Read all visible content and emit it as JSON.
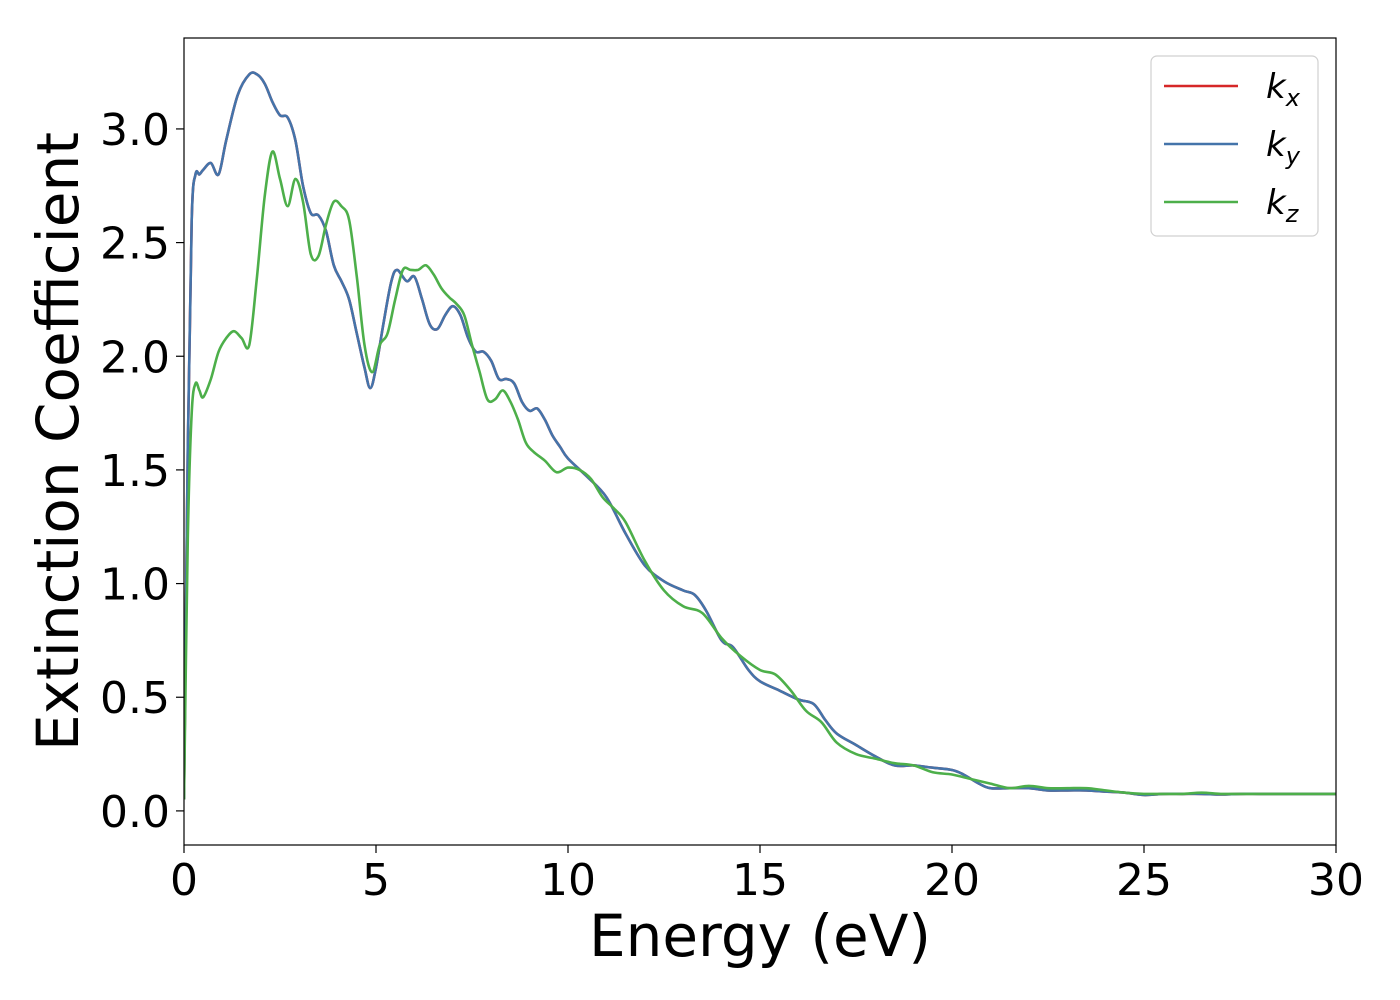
{
  "chart_data": {
    "type": "line",
    "xlabel": "Energy (eV)",
    "ylabel": "Extinction Coefficient",
    "xlim": [
      0,
      30
    ],
    "ylim": [
      -0.15,
      3.4
    ],
    "xticks": [
      "0",
      "5",
      "10",
      "15",
      "20",
      "25",
      "30"
    ],
    "xtick_values": [
      0,
      5,
      10,
      15,
      20,
      25,
      30
    ],
    "yticks": [
      "0.0",
      "0.5",
      "1.0",
      "1.5",
      "2.0",
      "2.5",
      "3.0"
    ],
    "ytick_values": [
      0.0,
      0.5,
      1.0,
      1.5,
      2.0,
      2.5,
      3.0
    ],
    "grid": false,
    "legend_position": "top-right",
    "series": [
      {
        "name": "k_x",
        "legend_base": "k",
        "legend_sub": "x",
        "color": "#d62728",
        "x": [
          0,
          0.1,
          0.2,
          0.3,
          0.4,
          0.5,
          0.7,
          0.9,
          1.1,
          1.4,
          1.7,
          1.9,
          2.1,
          2.3,
          2.5,
          2.7,
          2.9,
          3.1,
          3.3,
          3.5,
          3.7,
          3.9,
          4.1,
          4.3,
          4.5,
          4.7,
          4.85,
          5.0,
          5.2,
          5.4,
          5.55,
          5.8,
          6.0,
          6.2,
          6.4,
          6.6,
          6.8,
          7.0,
          7.2,
          7.4,
          7.6,
          7.8,
          8.0,
          8.2,
          8.4,
          8.6,
          8.8,
          9.0,
          9.2,
          9.4,
          9.6,
          9.8,
          10.0,
          10.5,
          11.0,
          11.5,
          12.0,
          12.5,
          13.0,
          13.3,
          13.6,
          14.0,
          14.3,
          14.7,
          15.0,
          15.5,
          16.0,
          16.4,
          16.7,
          17.0,
          17.5,
          18.0,
          18.5,
          19.0,
          19.5,
          20.0,
          20.3,
          20.7,
          21.0,
          21.5,
          22.0,
          22.5,
          23.0,
          23.5,
          24.0,
          24.5,
          25.0,
          25.5,
          26.0,
          26.5,
          27.0,
          27.5,
          28.0,
          28.5,
          29.0,
          29.5,
          30.0
        ],
        "values": [
          0.05,
          1.6,
          2.6,
          2.8,
          2.8,
          2.82,
          2.85,
          2.8,
          2.95,
          3.15,
          3.24,
          3.24,
          3.2,
          3.12,
          3.06,
          3.05,
          2.95,
          2.75,
          2.63,
          2.62,
          2.55,
          2.4,
          2.33,
          2.25,
          2.1,
          1.95,
          1.86,
          1.95,
          2.15,
          2.33,
          2.38,
          2.33,
          2.35,
          2.25,
          2.14,
          2.12,
          2.18,
          2.22,
          2.18,
          2.08,
          2.02,
          2.02,
          1.98,
          1.9,
          1.9,
          1.88,
          1.8,
          1.76,
          1.77,
          1.72,
          1.65,
          1.6,
          1.55,
          1.47,
          1.38,
          1.22,
          1.08,
          1.01,
          0.97,
          0.95,
          0.88,
          0.75,
          0.72,
          0.62,
          0.57,
          0.53,
          0.49,
          0.47,
          0.4,
          0.34,
          0.29,
          0.24,
          0.2,
          0.2,
          0.19,
          0.18,
          0.16,
          0.12,
          0.1,
          0.1,
          0.1,
          0.09,
          0.09,
          0.09,
          0.085,
          0.08,
          0.07,
          0.075,
          0.075,
          0.075,
          0.072,
          0.075,
          0.075,
          0.075,
          0.075,
          0.075,
          0.075
        ]
      },
      {
        "name": "k_y",
        "legend_base": "k",
        "legend_sub": "y",
        "color": "#4474aa",
        "x": [
          0,
          0.1,
          0.2,
          0.3,
          0.4,
          0.5,
          0.7,
          0.9,
          1.1,
          1.4,
          1.7,
          1.9,
          2.1,
          2.3,
          2.5,
          2.7,
          2.9,
          3.1,
          3.3,
          3.5,
          3.7,
          3.9,
          4.1,
          4.3,
          4.5,
          4.7,
          4.85,
          5.0,
          5.2,
          5.4,
          5.55,
          5.8,
          6.0,
          6.2,
          6.4,
          6.6,
          6.8,
          7.0,
          7.2,
          7.4,
          7.6,
          7.8,
          8.0,
          8.2,
          8.4,
          8.6,
          8.8,
          9.0,
          9.2,
          9.4,
          9.6,
          9.8,
          10.0,
          10.5,
          11.0,
          11.5,
          12.0,
          12.5,
          13.0,
          13.3,
          13.6,
          14.0,
          14.3,
          14.7,
          15.0,
          15.5,
          16.0,
          16.4,
          16.7,
          17.0,
          17.5,
          18.0,
          18.5,
          19.0,
          19.5,
          20.0,
          20.3,
          20.7,
          21.0,
          21.5,
          22.0,
          22.5,
          23.0,
          23.5,
          24.0,
          24.5,
          25.0,
          25.5,
          26.0,
          26.5,
          27.0,
          27.5,
          28.0,
          28.5,
          29.0,
          29.5,
          30.0
        ],
        "values": [
          0.05,
          1.6,
          2.6,
          2.8,
          2.8,
          2.82,
          2.85,
          2.8,
          2.95,
          3.15,
          3.24,
          3.24,
          3.2,
          3.12,
          3.06,
          3.05,
          2.95,
          2.75,
          2.63,
          2.62,
          2.55,
          2.4,
          2.33,
          2.25,
          2.1,
          1.95,
          1.86,
          1.95,
          2.15,
          2.33,
          2.38,
          2.33,
          2.35,
          2.25,
          2.14,
          2.12,
          2.18,
          2.22,
          2.18,
          2.08,
          2.02,
          2.02,
          1.98,
          1.9,
          1.9,
          1.88,
          1.8,
          1.76,
          1.77,
          1.72,
          1.65,
          1.6,
          1.55,
          1.47,
          1.38,
          1.22,
          1.08,
          1.01,
          0.97,
          0.95,
          0.88,
          0.75,
          0.72,
          0.62,
          0.57,
          0.53,
          0.49,
          0.47,
          0.4,
          0.34,
          0.29,
          0.24,
          0.2,
          0.2,
          0.19,
          0.18,
          0.16,
          0.12,
          0.1,
          0.1,
          0.1,
          0.09,
          0.09,
          0.09,
          0.085,
          0.08,
          0.07,
          0.075,
          0.075,
          0.075,
          0.072,
          0.075,
          0.075,
          0.075,
          0.075,
          0.075,
          0.075
        ]
      },
      {
        "name": "k_z",
        "legend_base": "k",
        "legend_sub": "z",
        "color": "#4daf4a",
        "x": [
          0,
          0.1,
          0.2,
          0.3,
          0.4,
          0.5,
          0.7,
          0.9,
          1.1,
          1.3,
          1.5,
          1.7,
          1.9,
          2.1,
          2.3,
          2.5,
          2.7,
          2.9,
          3.1,
          3.3,
          3.5,
          3.7,
          3.9,
          4.1,
          4.3,
          4.5,
          4.7,
          4.9,
          5.1,
          5.3,
          5.5,
          5.7,
          5.9,
          6.1,
          6.3,
          6.5,
          6.7,
          6.9,
          7.1,
          7.3,
          7.5,
          7.7,
          7.9,
          8.1,
          8.3,
          8.5,
          8.7,
          8.9,
          9.1,
          9.4,
          9.7,
          10.0,
          10.3,
          10.6,
          10.9,
          11.2,
          11.5,
          12.0,
          12.5,
          13.0,
          13.5,
          14.0,
          14.5,
          15.0,
          15.4,
          15.8,
          16.2,
          16.6,
          17.0,
          17.5,
          18.0,
          18.5,
          19.0,
          19.5,
          20.0,
          20.5,
          21.0,
          21.5,
          22.0,
          22.5,
          23.0,
          23.5,
          24.0,
          24.5,
          25.0,
          25.5,
          26.0,
          26.5,
          27.0,
          27.5,
          28.0,
          28.5,
          29.0,
          29.5,
          30.0
        ],
        "values": [
          0.05,
          1.2,
          1.75,
          1.88,
          1.85,
          1.82,
          1.9,
          2.02,
          2.08,
          2.11,
          2.08,
          2.05,
          2.35,
          2.7,
          2.9,
          2.78,
          2.66,
          2.78,
          2.68,
          2.45,
          2.44,
          2.58,
          2.68,
          2.66,
          2.6,
          2.35,
          2.05,
          1.93,
          2.05,
          2.1,
          2.25,
          2.38,
          2.38,
          2.38,
          2.4,
          2.36,
          2.3,
          2.26,
          2.23,
          2.18,
          2.05,
          1.93,
          1.81,
          1.81,
          1.85,
          1.8,
          1.72,
          1.62,
          1.58,
          1.54,
          1.49,
          1.51,
          1.5,
          1.46,
          1.38,
          1.33,
          1.27,
          1.1,
          0.97,
          0.9,
          0.87,
          0.76,
          0.68,
          0.62,
          0.6,
          0.53,
          0.44,
          0.39,
          0.3,
          0.25,
          0.23,
          0.21,
          0.2,
          0.17,
          0.16,
          0.14,
          0.12,
          0.1,
          0.11,
          0.1,
          0.1,
          0.1,
          0.09,
          0.08,
          0.075,
          0.075,
          0.075,
          0.08,
          0.075,
          0.075,
          0.075,
          0.075,
          0.075,
          0.075,
          0.075
        ]
      }
    ]
  }
}
